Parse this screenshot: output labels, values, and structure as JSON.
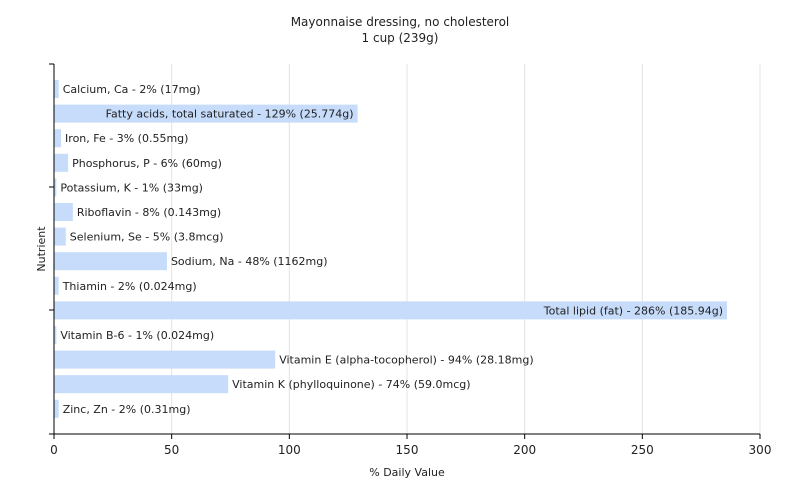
{
  "chart_data": {
    "type": "bar",
    "orientation": "horizontal",
    "title": "Mayonnaise dressing, no cholesterol",
    "subtitle": "1 cup (239g)",
    "xlabel": "% Daily Value",
    "ylabel": "Nutrient",
    "xlim": [
      0,
      300
    ],
    "xticks": [
      "0",
      "50",
      "100",
      "150",
      "200",
      "250",
      "300"
    ],
    "grid": true,
    "bar_color": "#c6dcfa",
    "categories": [
      "Calcium, Ca",
      "Fatty acids, total saturated",
      "Iron, Fe",
      "Phosphorus, P",
      "Potassium, K",
      "Riboflavin",
      "Selenium, Se",
      "Sodium, Na",
      "Thiamin",
      "Total lipid (fat)",
      "Vitamin B-6",
      "Vitamin E (alpha-tocopherol)",
      "Vitamin K (phylloquinone)",
      "Zinc, Zn"
    ],
    "values": [
      2,
      129,
      3,
      6,
      1,
      8,
      5,
      48,
      2,
      286,
      1,
      94,
      74,
      2
    ],
    "labels": [
      "Calcium, Ca - 2% (17mg)",
      "Fatty acids, total saturated - 129% (25.774g)",
      "Iron, Fe - 3% (0.55mg)",
      "Phosphorus, P - 6% (60mg)",
      "Potassium, K - 1% (33mg)",
      "Riboflavin - 8% (0.143mg)",
      "Selenium, Se - 5% (3.8mcg)",
      "Sodium, Na - 48% (1162mg)",
      "Thiamin - 2% (0.024mg)",
      "Total lipid (fat) - 286% (185.94g)",
      "Vitamin B-6 - 1% (0.024mg)",
      "Vitamin E (alpha-tocopherol) - 94% (28.18mg)",
      "Vitamin K (phylloquinone) - 74% (59.0mcg)",
      "Zinc, Zn - 2% (0.31mg)"
    ]
  }
}
